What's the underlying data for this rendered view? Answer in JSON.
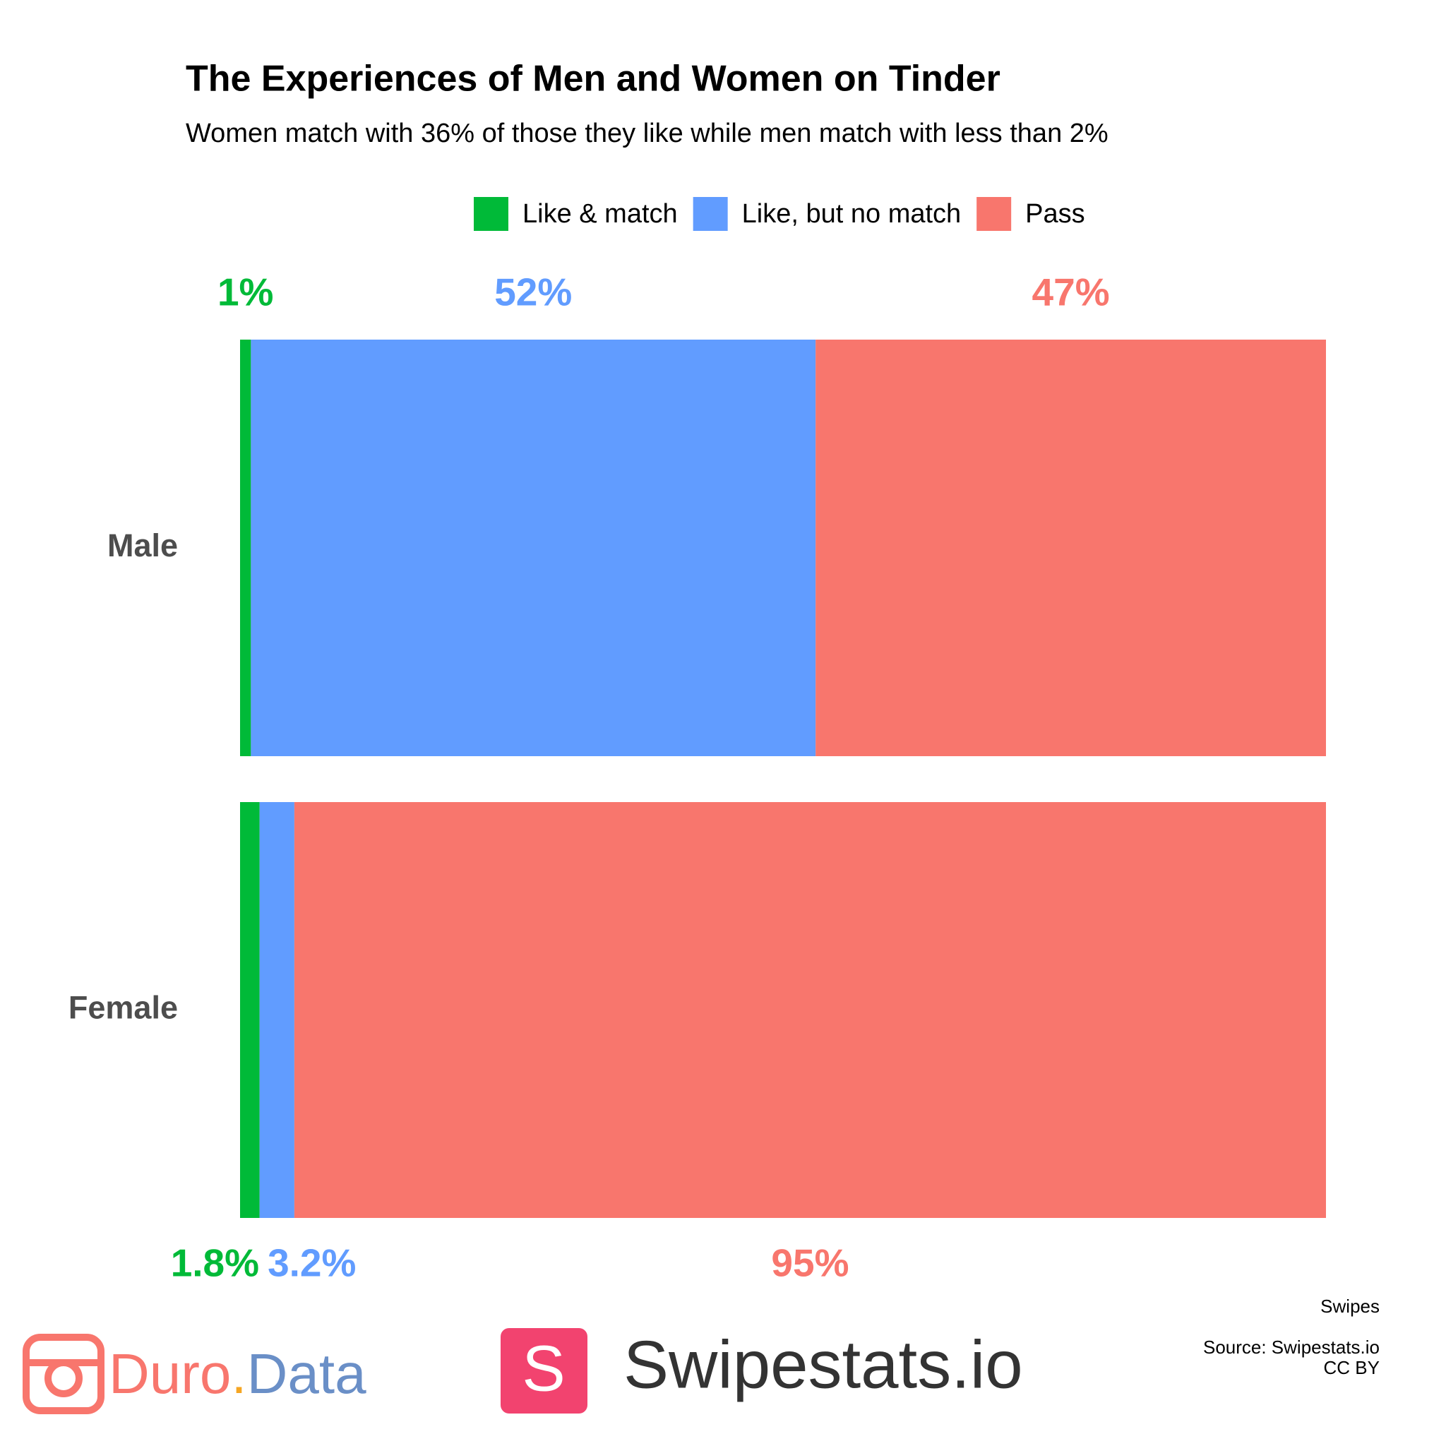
{
  "chart_data": {
    "type": "stacked_barh",
    "title": "The Experiences of Men and Women on Tinder",
    "subtitle": "Women match with 36% of those they like while men match with less than 2%",
    "categories": [
      "Male",
      "Female"
    ],
    "series": [
      {
        "name": "Like & match",
        "color": "#00ba38",
        "values": [
          1,
          1.8
        ],
        "value_labels": [
          "1%",
          "1.8%"
        ]
      },
      {
        "name": "Like, but no match",
        "color": "#619cff",
        "values": [
          52,
          3.2
        ],
        "value_labels": [
          "52%",
          "3.2%"
        ]
      },
      {
        "name": "Pass",
        "color": "#f8766d",
        "values": [
          47,
          95
        ],
        "value_labels": [
          "47%",
          "95%"
        ]
      }
    ],
    "xlim": [
      0,
      100
    ],
    "xlabel": "Swipes",
    "legend": "top",
    "source": "Source: Swipestats.io",
    "license": "CC BY"
  },
  "logos": {
    "duro": [
      "Duro",
      ".",
      "Data"
    ],
    "swipestats_letter": "S",
    "swipestats": "Swipestats.io"
  }
}
